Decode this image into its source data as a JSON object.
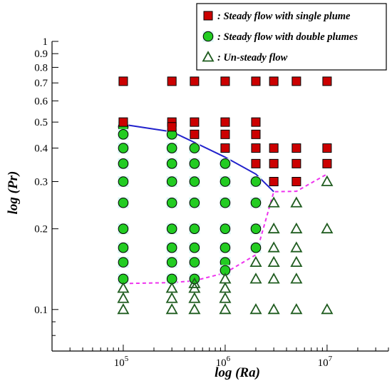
{
  "chart_data": {
    "type": "scatter",
    "xscale": "log",
    "yscale": "log",
    "xlabel": "log (Ra)",
    "ylabel": "log (Pr)",
    "xlim": [
      20000,
      40000000
    ],
    "ylim": [
      0.07,
      1.0
    ],
    "x_ticks": [
      {
        "value": 100000,
        "label": "10^5"
      },
      {
        "value": 1000000,
        "label": "10^6"
      },
      {
        "value": 10000000,
        "label": "10^7"
      }
    ],
    "y_ticks": [
      {
        "value": 0.1,
        "label": "0.1"
      },
      {
        "value": 0.2,
        "label": "0.2"
      },
      {
        "value": 0.3,
        "label": "0.3"
      },
      {
        "value": 0.4,
        "label": "0.4"
      },
      {
        "value": 0.5,
        "label": "0.5"
      },
      {
        "value": 0.6,
        "label": "0.6"
      },
      {
        "value": 0.7,
        "label": "0.7"
      },
      {
        "value": 0.8,
        "label": "0.8"
      },
      {
        "value": 0.9,
        "label": "0.9"
      },
      {
        "value": 1.0,
        "label": "1"
      }
    ],
    "legend_position": "top-right",
    "series": [
      {
        "name": ": Steady flow with single plume",
        "marker": "square",
        "color": "#cc0000",
        "points": [
          [
            100000,
            0.71
          ],
          [
            100000,
            0.5
          ],
          [
            300000,
            0.71
          ],
          [
            300000,
            0.5
          ],
          [
            300000,
            0.48
          ],
          [
            500000,
            0.71
          ],
          [
            500000,
            0.5
          ],
          [
            500000,
            0.45
          ],
          [
            1000000,
            0.71
          ],
          [
            1000000,
            0.5
          ],
          [
            1000000,
            0.45
          ],
          [
            1000000,
            0.4
          ],
          [
            2000000,
            0.71
          ],
          [
            2000000,
            0.5
          ],
          [
            2000000,
            0.45
          ],
          [
            2000000,
            0.4
          ],
          [
            2000000,
            0.35
          ],
          [
            3000000,
            0.71
          ],
          [
            3000000,
            0.4
          ],
          [
            3000000,
            0.35
          ],
          [
            3000000,
            0.3
          ],
          [
            5000000,
            0.71
          ],
          [
            5000000,
            0.4
          ],
          [
            5000000,
            0.35
          ],
          [
            5000000,
            0.3
          ],
          [
            10000000,
            0.71
          ],
          [
            10000000,
            0.4
          ],
          [
            10000000,
            0.35
          ]
        ]
      },
      {
        "name": ": Steady flow with double plumes",
        "marker": "circle",
        "color": "#22cc22",
        "points": [
          [
            100000,
            0.48
          ],
          [
            100000,
            0.45
          ],
          [
            100000,
            0.4
          ],
          [
            100000,
            0.35
          ],
          [
            100000,
            0.3
          ],
          [
            100000,
            0.25
          ],
          [
            100000,
            0.2
          ],
          [
            100000,
            0.17
          ],
          [
            100000,
            0.15
          ],
          [
            100000,
            0.13
          ],
          [
            300000,
            0.45
          ],
          [
            300000,
            0.4
          ],
          [
            300000,
            0.35
          ],
          [
            300000,
            0.3
          ],
          [
            300000,
            0.25
          ],
          [
            300000,
            0.2
          ],
          [
            300000,
            0.17
          ],
          [
            300000,
            0.15
          ],
          [
            300000,
            0.13
          ],
          [
            500000,
            0.4
          ],
          [
            500000,
            0.35
          ],
          [
            500000,
            0.3
          ],
          [
            500000,
            0.25
          ],
          [
            500000,
            0.2
          ],
          [
            500000,
            0.17
          ],
          [
            500000,
            0.15
          ],
          [
            500000,
            0.13
          ],
          [
            1000000,
            0.35
          ],
          [
            1000000,
            0.3
          ],
          [
            1000000,
            0.25
          ],
          [
            1000000,
            0.2
          ],
          [
            1000000,
            0.17
          ],
          [
            1000000,
            0.15
          ],
          [
            1000000,
            0.14
          ],
          [
            2000000,
            0.3
          ],
          [
            2000000,
            0.25
          ],
          [
            2000000,
            0.2
          ],
          [
            2000000,
            0.17
          ]
        ]
      },
      {
        "name": ": Un-steady flow",
        "marker": "triangle",
        "color": "#1f5c1f",
        "points": [
          [
            100000,
            0.12
          ],
          [
            100000,
            0.11
          ],
          [
            100000,
            0.1
          ],
          [
            300000,
            0.12
          ],
          [
            300000,
            0.11
          ],
          [
            300000,
            0.1
          ],
          [
            500000,
            0.125
          ],
          [
            500000,
            0.12
          ],
          [
            500000,
            0.11
          ],
          [
            500000,
            0.1
          ],
          [
            1000000,
            0.13
          ],
          [
            1000000,
            0.12
          ],
          [
            1000000,
            0.11
          ],
          [
            1000000,
            0.1
          ],
          [
            2000000,
            0.15
          ],
          [
            2000000,
            0.13
          ],
          [
            2000000,
            0.1
          ],
          [
            3000000,
            0.25
          ],
          [
            3000000,
            0.2
          ],
          [
            3000000,
            0.17
          ],
          [
            3000000,
            0.15
          ],
          [
            3000000,
            0.13
          ],
          [
            3000000,
            0.1
          ],
          [
            5000000,
            0.25
          ],
          [
            5000000,
            0.2
          ],
          [
            5000000,
            0.17
          ],
          [
            5000000,
            0.15
          ],
          [
            5000000,
            0.13
          ],
          [
            5000000,
            0.1
          ],
          [
            10000000,
            0.3
          ],
          [
            10000000,
            0.2
          ],
          [
            10000000,
            0.1
          ]
        ]
      }
    ],
    "lines": [
      {
        "style": "solid",
        "color": "#2222cc",
        "points": [
          [
            100000,
            0.49
          ],
          [
            300000,
            0.46
          ],
          [
            500000,
            0.42
          ],
          [
            1000000,
            0.37
          ],
          [
            2000000,
            0.32
          ],
          [
            3000000,
            0.275
          ]
        ]
      },
      {
        "style": "dashed",
        "color": "#ee33ee",
        "points": [
          [
            100000,
            0.125
          ],
          [
            300000,
            0.126
          ],
          [
            500000,
            0.128
          ],
          [
            1000000,
            0.137
          ],
          [
            2000000,
            0.16
          ],
          [
            3000000,
            0.275
          ],
          [
            5000000,
            0.276
          ],
          [
            10000000,
            0.32
          ]
        ]
      }
    ]
  }
}
